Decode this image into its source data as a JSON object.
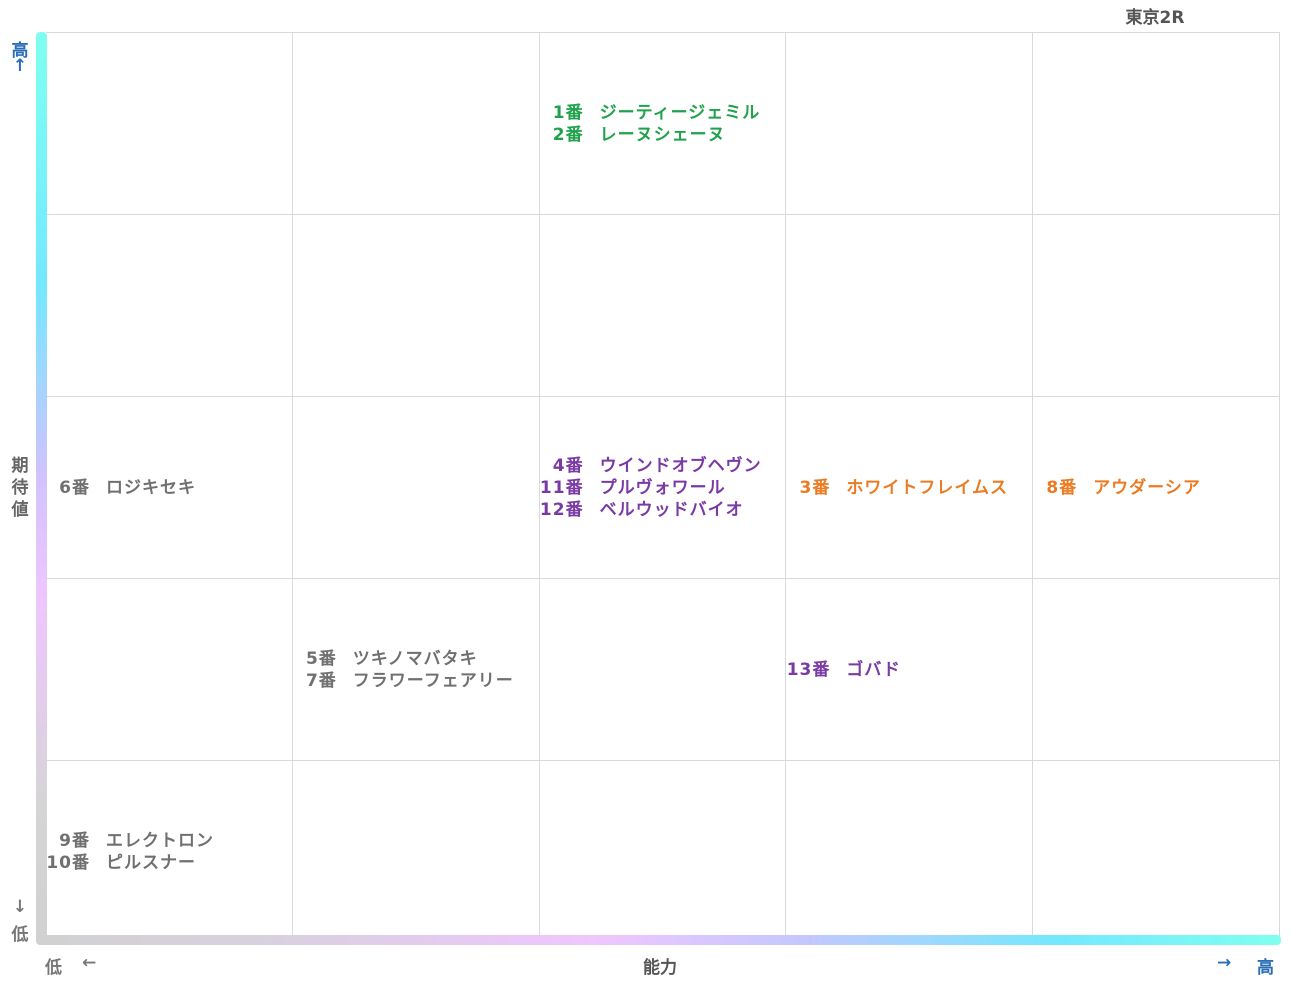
{
  "chart_data": {
    "type": "table",
    "title": "東京2R",
    "xlabel": "能力",
    "ylabel": "期待値",
    "x_axis": {
      "low": "低",
      "high": "高",
      "low_arrow": "←",
      "high_arrow": "→",
      "levels": 5
    },
    "y_axis": {
      "low": "低",
      "high": "高",
      "low_arrow": "↓",
      "high_arrow": "↑",
      "levels": 5
    },
    "grid": true,
    "colors": {
      "green": "#1fa24b",
      "purple": "#7a3aa3",
      "orange": "#ea7b22",
      "gray": "#707070"
    },
    "cells": [
      {
        "x": 3,
        "y": 5,
        "color": "green",
        "entries": [
          {
            "num": "1番",
            "name": "ジーティージェミル"
          },
          {
            "num": "2番",
            "name": "レーヌシェーヌ"
          }
        ]
      },
      {
        "x": 1,
        "y": 3,
        "color": "gray",
        "entries": [
          {
            "num": "6番",
            "name": "ロジキセキ"
          }
        ]
      },
      {
        "x": 3,
        "y": 3,
        "color": "purple",
        "entries": [
          {
            "num": "4番",
            "name": "ウインドオブヘヴン"
          },
          {
            "num": "11番",
            "name": "プルヴォワール"
          },
          {
            "num": "12番",
            "name": "ベルウッドバイオ"
          }
        ]
      },
      {
        "x": 4,
        "y": 3,
        "color": "orange",
        "entries": [
          {
            "num": "3番",
            "name": "ホワイトフレイムス"
          }
        ]
      },
      {
        "x": 5,
        "y": 3,
        "color": "orange",
        "entries": [
          {
            "num": "8番",
            "name": "アウダーシア"
          }
        ]
      },
      {
        "x": 2,
        "y": 2,
        "color": "gray",
        "entries": [
          {
            "num": "5番",
            "name": "ツキノマバタキ"
          },
          {
            "num": "7番",
            "name": "フラワーフェアリー"
          }
        ]
      },
      {
        "x": 4,
        "y": 2,
        "color": "purple",
        "entries": [
          {
            "num": "13番",
            "name": "ゴバド"
          }
        ]
      },
      {
        "x": 1,
        "y": 1,
        "color": "gray",
        "entries": [
          {
            "num": "9番",
            "name": "エレクトロン"
          },
          {
            "num": "10番",
            "name": "ピルスナー"
          }
        ]
      }
    ]
  }
}
